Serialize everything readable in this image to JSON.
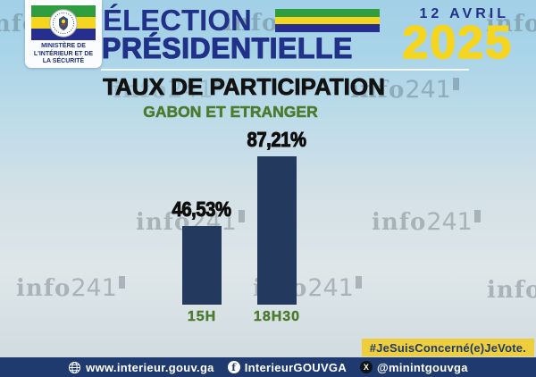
{
  "header": {
    "ministry": {
      "lines": [
        "MINISTÈRE DE",
        "L'INTÉRIEUR ET DE",
        "LA SÉCURITÉ"
      ]
    },
    "title_line1": "ÉLECTION",
    "title_line2": "PRÉSIDENTIELLE",
    "date_label": "12 AVRIL",
    "year": "2025"
  },
  "main": {
    "title": "TAUX DE PARTICIPATION",
    "subtitle": "GABON ET ETRANGER"
  },
  "chart_data": {
    "type": "bar",
    "title": "TAUX DE PARTICIPATION",
    "subtitle": "GABON ET ETRANGER",
    "categories": [
      "15H",
      "18H30"
    ],
    "values": [
      46.53,
      87.21
    ],
    "value_labels": [
      "46,53%",
      "87,21%"
    ],
    "bar_color": "#24395e",
    "ylim": [
      0,
      100
    ],
    "grid": false,
    "legend": false
  },
  "badge": {
    "label": "#JeSuisConcerné(e)JeVote."
  },
  "footer": {
    "website": "www.interieur.gouv.ga",
    "facebook": "InterieurGOUVGA",
    "twitter": "@minintgouvga"
  },
  "icons": {
    "facebook_glyph": "f",
    "x_glyph": "X"
  },
  "watermark": {
    "serif": "info",
    "num": "241"
  },
  "colors": {
    "background_blue": "#a2d0e7",
    "header_navy": "#213088",
    "accent_yellow": "#f6d51f",
    "flag_green": "#2f9e41",
    "flag_yellow": "#f4d51f",
    "flag_blue": "#262f8f",
    "bar_navy": "#24395e",
    "subtitle_green": "#4c7a2e",
    "footer_navy": "#1f3a6e",
    "badge_yellow": "#eecf3b",
    "title_black": "#121212"
  }
}
